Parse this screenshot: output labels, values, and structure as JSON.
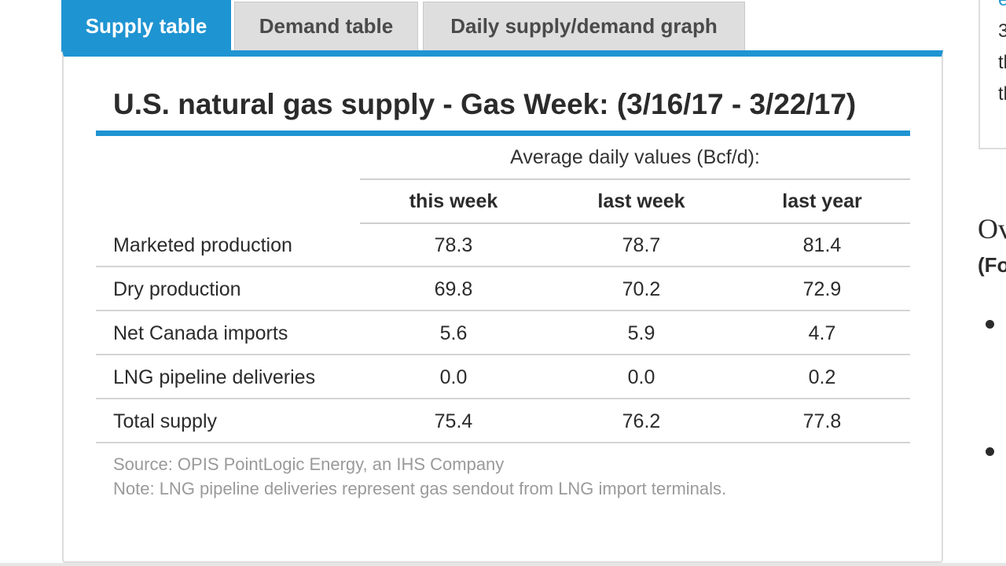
{
  "tabs": [
    {
      "label": "Supply table",
      "active": true
    },
    {
      "label": "Demand table",
      "active": false
    },
    {
      "label": "Daily supply/demand graph",
      "active": false
    }
  ],
  "title": "U.S. natural gas supply - Gas Week: (3/16/17 - 3/22/17)",
  "table": {
    "group_header": "Average daily values (Bcf/d):",
    "columns": [
      "this week",
      "last week",
      "last year"
    ],
    "rows": [
      {
        "label": "Marketed production",
        "values": [
          "78.3",
          "78.7",
          "81.4"
        ]
      },
      {
        "label": "Dry production",
        "values": [
          "69.8",
          "70.2",
          "72.9"
        ]
      },
      {
        "label": "Net Canada imports",
        "values": [
          "5.6",
          "5.9",
          "4.7"
        ]
      },
      {
        "label": "LNG pipeline deliveries",
        "values": [
          "0.0",
          "0.0",
          "0.2"
        ]
      },
      {
        "label": "Total supply",
        "values": [
          "75.4",
          "76.2",
          "77.8"
        ]
      }
    ]
  },
  "source": "Source: OPIS PointLogic Energy, an IHS Company",
  "note": "Note: LNG pipeline deliveries represent gas sendout from LNG import terminals.",
  "side": {
    "line1": "e",
    "line2": "3",
    "line3": "tl",
    "line4": "tl",
    "heading": "Ov",
    "subheading": "(Fo"
  },
  "colors": {
    "accent": "#1f94d2",
    "tab_inactive": "#dedede",
    "muted_text": "#9a9a9a"
  }
}
